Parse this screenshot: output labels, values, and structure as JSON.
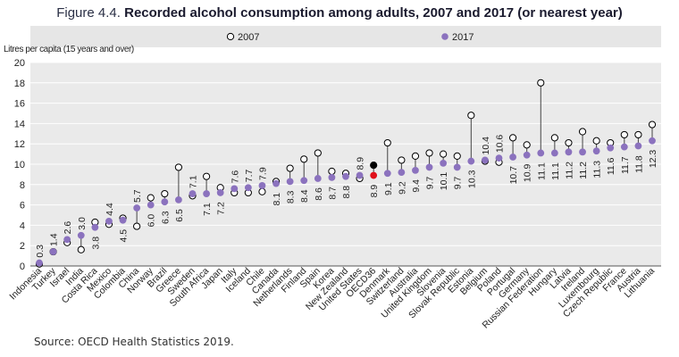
{
  "header": {
    "figure_label": "Figure 4.4.",
    "title": "Recorded alcohol consumption among adults, 2007 and 2017 (or nearest year)"
  },
  "footer": {
    "source": "Source: OECD Health Statistics 2019."
  },
  "colors": {
    "s2007": "#ffffff",
    "s2017": "#8b72be",
    "oecd2007": "#000000",
    "oecd2017": "#e0101a",
    "legend_band": "#e6e6e6"
  },
  "chart_data": {
    "type": "dot",
    "title": "Recorded alcohol consumption among adults, 2007 and 2017 (or nearest year)",
    "ylabel": "Litres per capita (15 years and over)",
    "xlabel": "",
    "ylim": [
      0,
      20
    ],
    "yticks": [
      0,
      2,
      4,
      6,
      8,
      10,
      12,
      14,
      16,
      18,
      20
    ],
    "grid": true,
    "legend": [
      "2007",
      "2017"
    ],
    "categories": [
      "Indonesia",
      "Turkey",
      "Israel",
      "India",
      "Costa Rica",
      "Mexico",
      "Colombia",
      "China",
      "Norway",
      "Brazil",
      "Greece",
      "Sweden",
      "South Africa",
      "Japan",
      "Italy",
      "Iceland",
      "Chile",
      "Canada",
      "Netherlands",
      "Finland",
      "Spain",
      "Korea",
      "New Zealand",
      "United States",
      "OECD36",
      "Denmark",
      "Switzerland",
      "Australia",
      "United Kingdom",
      "Slovenia",
      "Slovak Republic",
      "Estonia",
      "Belgium",
      "Poland",
      "Portugal",
      "Germany",
      "Russian Federation",
      "Hungary",
      "Latvia",
      "Ireland",
      "Luxembourg",
      "Czech Republic",
      "France",
      "Austria",
      "Lithuania"
    ],
    "labels_2017": [
      "0.3",
      "1.4",
      "2.6",
      "3.0",
      "3.8",
      "4.4",
      "4.5",
      "5.7",
      "6.0",
      "6.3",
      "6.5",
      "7.1",
      "7.1",
      "7.2",
      "7.6",
      "7.7",
      "7.9",
      "8.1",
      "8.3",
      "8.4",
      "8.6",
      "8.7",
      "8.8",
      "8.9",
      "8.9",
      "9.1",
      "9.2",
      "9.4",
      "9.7",
      "10.1",
      "9.7",
      "10.3",
      "10.4",
      "10.6",
      "10.7",
      "10.9",
      "11.1",
      "11.1",
      "11.2",
      "11.2",
      "11.3",
      "11.6",
      "11.7",
      "11.8",
      "12.3"
    ],
    "highlight": "OECD36",
    "series": [
      {
        "name": "2007",
        "values": [
          0.2,
          1.4,
          2.3,
          1.6,
          4.3,
          4.1,
          4.7,
          3.9,
          6.7,
          7.1,
          9.7,
          6.9,
          8.8,
          7.7,
          7.2,
          7.2,
          7.3,
          8.3,
          9.6,
          10.5,
          11.1,
          9.3,
          9.1,
          8.6,
          9.9,
          12.1,
          10.4,
          10.8,
          11.1,
          11.0,
          10.8,
          14.8,
          10.3,
          10.2,
          12.6,
          11.9,
          18.0,
          12.6,
          12.1,
          13.2,
          12.3,
          12.1,
          12.9,
          12.9,
          13.9
        ]
      },
      {
        "name": "2017",
        "values": [
          0.3,
          1.4,
          2.6,
          3.0,
          3.8,
          4.4,
          4.5,
          5.7,
          6.0,
          6.3,
          6.5,
          7.1,
          7.1,
          7.2,
          7.6,
          7.7,
          7.9,
          8.1,
          8.3,
          8.4,
          8.6,
          8.7,
          8.8,
          8.9,
          8.9,
          9.1,
          9.2,
          9.4,
          9.7,
          10.1,
          9.7,
          10.3,
          10.4,
          10.6,
          10.7,
          10.9,
          11.1,
          11.1,
          11.2,
          11.2,
          11.3,
          11.6,
          11.7,
          11.8,
          12.3
        ]
      }
    ]
  }
}
